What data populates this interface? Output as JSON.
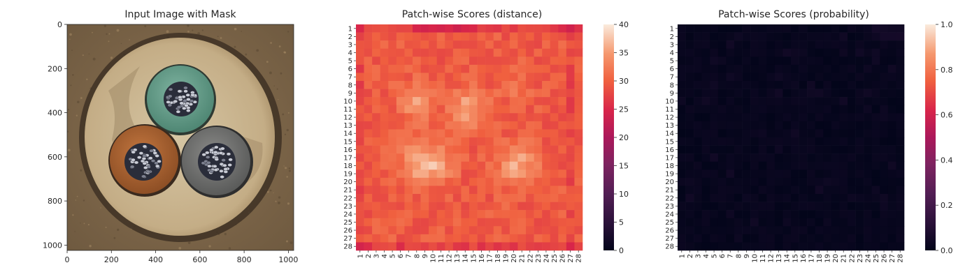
{
  "figure": {
    "panels": [
      {
        "title": "Input Image with Mask"
      },
      {
        "title": "Patch-wise Scores (distance)"
      },
      {
        "title": "Patch-wise Scores (probability)"
      }
    ]
  },
  "chart_data": [
    {
      "type": "image",
      "title": "Input Image with Mask",
      "xlim": [
        0,
        1024
      ],
      "ylim": [
        1024,
        0
      ],
      "xticks": [
        0,
        200,
        400,
        600,
        800,
        1000
      ],
      "yticks": [
        0,
        200,
        400,
        600,
        800,
        1000
      ],
      "image_description": "top view of a cable cross-section with three insulated conductors (green, brown, grey) each with silver strands, inside a beige sheath on a mottled brown background",
      "colors": {
        "background": "#7a6448",
        "sheath": "#c9b48f",
        "green_core": "#5e9a86",
        "brown_core": "#a8602f",
        "grey_core": "#6f7070"
      }
    },
    {
      "type": "heatmap",
      "title": "Patch-wise Scores (distance)",
      "rows": 28,
      "cols": 28,
      "row_labels": [
        "1",
        "2",
        "3",
        "4",
        "5",
        "6",
        "7",
        "8",
        "9",
        "10",
        "11",
        "12",
        "13",
        "14",
        "15",
        "16",
        "17",
        "18",
        "19",
        "20",
        "21",
        "22",
        "23",
        "24",
        "25",
        "26",
        "27",
        "28"
      ],
      "col_labels": [
        "1",
        "2",
        "3",
        "4",
        "5",
        "6",
        "7",
        "8",
        "9",
        "10",
        "11",
        "12",
        "13",
        "14",
        "15",
        "16",
        "17",
        "18",
        "19",
        "20",
        "21",
        "22",
        "23",
        "24",
        "25",
        "26",
        "27",
        "28"
      ],
      "colorbar": {
        "min": 0,
        "max": 40,
        "ticks": [
          0,
          5,
          10,
          15,
          20,
          25,
          30,
          35,
          40
        ],
        "colormap": "rocket"
      },
      "value_range": [
        25,
        39
      ],
      "note": "values approx 26-31 at borders and first/last rows; high-value blobs (~35-39) near rows 9-13 cols 7-9 and 14-15, and rows 16-20 cols 7-12 and 19-22"
    },
    {
      "type": "heatmap",
      "title": "Patch-wise Scores (probability)",
      "rows": 28,
      "cols": 28,
      "row_labels": [
        "1",
        "2",
        "3",
        "4",
        "5",
        "6",
        "7",
        "8",
        "9",
        "10",
        "11",
        "12",
        "13",
        "14",
        "15",
        "16",
        "17",
        "18",
        "19",
        "20",
        "21",
        "22",
        "23",
        "24",
        "25",
        "26",
        "27",
        "28"
      ],
      "col_labels": [
        "1",
        "2",
        "3",
        "4",
        "5",
        "6",
        "7",
        "8",
        "9",
        "10",
        "11",
        "12",
        "13",
        "14",
        "15",
        "16",
        "17",
        "18",
        "19",
        "20",
        "21",
        "22",
        "23",
        "24",
        "25",
        "26",
        "27",
        "28"
      ],
      "colorbar": {
        "min": 0.0,
        "max": 1.0,
        "ticks": [
          "0.0",
          "0.2",
          "0.4",
          "0.6",
          "0.8",
          "1.0"
        ],
        "colormap": "rocket"
      },
      "value_range": [
        0.0,
        0.05
      ],
      "note": "nearly all cells ~0.0 (dark)"
    }
  ]
}
